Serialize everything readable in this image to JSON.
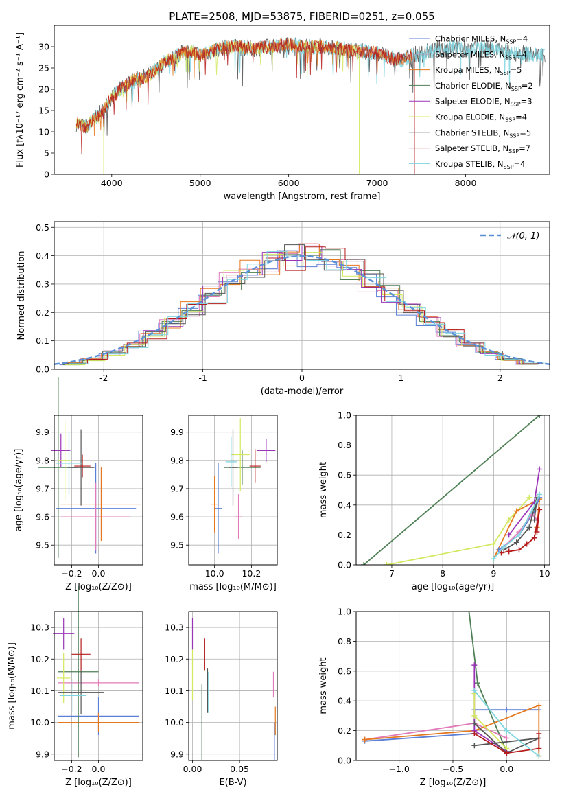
{
  "figure": {
    "title": "PLATE=2508, MJD=53875, FIBERID=0251, z=0.055"
  },
  "palette": {
    "Chabrier MILES": "#5b7fd6",
    "Salpeter MILES": "#e07ab8",
    "Kroupa MILES": "#e5781e",
    "Chabrier ELODIE": "#4f7f55",
    "Salpeter ELODIE": "#9b35b8",
    "Kroupa ELODIE": "#d4e85f",
    "Chabrier STELIB": "#555555",
    "Salpeter STELIB": "#b51b1b",
    "Kroupa STELIB": "#7fd6e0",
    "normal": "#5b8fd6"
  },
  "chart_data": [
    {
      "id": "spectrum",
      "type": "line",
      "title": "PLATE=2508, MJD=53875, FIBERID=0251, z=0.055",
      "xlabel": "wavelength [Angstrom, rest frame]",
      "ylabel": "Flux [fλ10⁻¹⁷ erg cm⁻² s⁻¹ A⁻¹]",
      "xlim": [
        3350,
        8950
      ],
      "ylim": [
        0,
        35
      ],
      "xticks": [
        4000,
        5000,
        6000,
        7000,
        8000
      ],
      "yticks": [
        0,
        5,
        10,
        15,
        20,
        25,
        30
      ],
      "legend": "right",
      "continuum_x": [
        3600,
        3700,
        3800,
        3900,
        4000,
        4100,
        4200,
        4300,
        4400,
        4500,
        4600,
        4700,
        4800,
        4900,
        5000,
        5200,
        5400,
        5600,
        5800,
        6000,
        6200,
        6400,
        6600,
        6800,
        7000,
        7200,
        7300,
        7400,
        7600,
        7800,
        8000,
        8200,
        8400,
        8600,
        8800
      ],
      "continuum_y": [
        12,
        11,
        13,
        15,
        18,
        20,
        21.5,
        22.5,
        23,
        24.5,
        26.5,
        27.5,
        28.5,
        29,
        28,
        29.5,
        30,
        29.5,
        30,
        30.5,
        30,
        30,
        29.5,
        29,
        28.5,
        27,
        27,
        28,
        29,
        30,
        29.5,
        29.5,
        29,
        28.5,
        28
      ],
      "series": [
        {
          "name": "Chabrier MILES, N_SSP=4",
          "label_main": "Chabrier MILES, N",
          "label_sub": "SSP",
          "label_tail": "=4"
        },
        {
          "name": "Salpeter MILES, N_SSP=4",
          "label_main": "Salpeter MILES, N",
          "label_sub": "SSP",
          "label_tail": "=4"
        },
        {
          "name": "Kroupa MILES, N_SSP=5",
          "label_main": "Kroupa MILES, N",
          "label_sub": "SSP",
          "label_tail": "=5"
        },
        {
          "name": "Chabrier ELODIE, N_SSP=2",
          "label_main": "Chabrier ELODIE, N",
          "label_sub": "SSP",
          "label_tail": "=2"
        },
        {
          "name": "Salpeter ELODIE, N_SSP=3",
          "label_main": "Salpeter ELODIE, N",
          "label_sub": "SSP",
          "label_tail": "=3"
        },
        {
          "name": "Kroupa ELODIE, N_SSP=4",
          "label_main": "Kroupa ELODIE, N",
          "label_sub": "SSP",
          "label_tail": "=4"
        },
        {
          "name": "Chabrier STELIB, N_SSP=5",
          "label_main": "Chabrier STELIB, N",
          "label_sub": "SSP",
          "label_tail": "=5"
        },
        {
          "name": "Salpeter STELIB, N_SSP=7",
          "label_main": "Salpeter STELIB, N",
          "label_sub": "SSP",
          "label_tail": "=7"
        },
        {
          "name": "Kroupa STELIB, N_SSP=4",
          "label_main": "Kroupa STELIB, N",
          "label_sub": "SSP",
          "label_tail": "=4"
        }
      ]
    },
    {
      "id": "histogram",
      "type": "bar",
      "xlabel": "(data-model)/error",
      "ylabel": "Normed distribution",
      "xlim": [
        -2.5,
        2.5
      ],
      "ylim": [
        0,
        0.52
      ],
      "xticks": [
        -2,
        -1,
        0,
        1,
        2
      ],
      "yticks": [
        0.0,
        0.1,
        0.2,
        0.3,
        0.4,
        0.5
      ],
      "legend": "top-right",
      "bin_centers": [
        -2.3,
        -2.1,
        -1.9,
        -1.7,
        -1.5,
        -1.3,
        -1.1,
        -0.9,
        -0.7,
        -0.5,
        -0.3,
        -0.1,
        0.1,
        0.3,
        0.5,
        0.7,
        0.9,
        1.1,
        1.3,
        1.5,
        1.7,
        1.9,
        2.1,
        2.3
      ],
      "normal_curve": {
        "label": "𝒩(0, 1)",
        "mean": 0,
        "sd": 1
      }
    },
    {
      "id": "age_vs_Z",
      "type": "scatter",
      "xlabel": "Z [log₁₀(Z/Z⊙)]",
      "ylabel": "age  [log₁₀(age/yr)]",
      "xlim": [
        -0.33,
        0.33
      ],
      "ylim": [
        9.43,
        9.96
      ],
      "xticks": [
        -0.2,
        0.0
      ],
      "xticklabels": [
        "−0.2",
        "0.0"
      ],
      "yticks": [
        9.5,
        9.6,
        9.7,
        9.8,
        9.9
      ],
      "points": [
        {
          "series": "Chabrier MILES",
          "x": -0.02,
          "y": 9.63,
          "xerr": 0.3,
          "yerr": 0.16
        },
        {
          "series": "Salpeter MILES",
          "x": -0.02,
          "y": 9.6,
          "xerr": 0.26,
          "yerr": 0.12
        },
        {
          "series": "Kroupa MILES",
          "x": 0.02,
          "y": 9.645,
          "xerr": 0.3,
          "yerr": 0.13
        },
        {
          "series": "Chabrier ELODIE",
          "x": -0.3,
          "y": 9.775,
          "xerr": 0.15,
          "yerr": 0.32
        },
        {
          "series": "Salpeter ELODIE",
          "x": -0.28,
          "y": 9.835,
          "xerr": 0.07,
          "yerr": 0.06
        },
        {
          "series": "Kroupa ELODIE",
          "x": -0.25,
          "y": 9.8,
          "xerr": 0.05,
          "yerr": 0.14
        },
        {
          "series": "Chabrier STELIB",
          "x": -0.13,
          "y": 9.775,
          "xerr": 0.1,
          "yerr": 0.135
        },
        {
          "series": "Salpeter STELIB",
          "x": -0.12,
          "y": 9.78,
          "xerr": 0.06,
          "yerr": 0.04
        },
        {
          "series": "Kroupa STELIB",
          "x": -0.22,
          "y": 9.79,
          "xerr": 0.1,
          "yerr": 0.11
        }
      ]
    },
    {
      "id": "age_vs_mass",
      "type": "scatter",
      "xlabel": "mass [log₁₀(M/M⊙)]",
      "ylabel": "",
      "xlim": [
        9.86,
        10.34
      ],
      "ylim": [
        9.43,
        9.96
      ],
      "xticks": [
        10.0,
        10.2
      ],
      "xticklabels": [
        "10.0",
        "10.2"
      ],
      "yticks": [
        9.5,
        9.6,
        9.7,
        9.8,
        9.9
      ],
      "points": [
        {
          "series": "Chabrier MILES",
          "x": 10.02,
          "y": 9.63,
          "xerr": 0.02,
          "yerr": 0.16
        },
        {
          "series": "Salpeter MILES",
          "x": 10.13,
          "y": 9.6,
          "xerr": 0.02,
          "yerr": 0.08
        },
        {
          "series": "Kroupa MILES",
          "x": 10.0,
          "y": 9.645,
          "xerr": 0.02,
          "yerr": 0.1
        },
        {
          "series": "Chabrier ELODIE",
          "x": 10.15,
          "y": 9.775,
          "xerr": 0.1,
          "yerr": 0.06
        },
        {
          "series": "Salpeter ELODIE",
          "x": 10.28,
          "y": 9.835,
          "xerr": 0.05,
          "yerr": 0.04
        },
        {
          "series": "Kroupa ELODIE",
          "x": 10.14,
          "y": 9.82,
          "xerr": 0.05,
          "yerr": 0.13
        },
        {
          "series": "Chabrier STELIB",
          "x": 10.1,
          "y": 9.775,
          "xerr": 0.02,
          "yerr": 0.135
        },
        {
          "series": "Salpeter STELIB",
          "x": 10.22,
          "y": 9.78,
          "xerr": 0.03,
          "yerr": 0.06
        },
        {
          "series": "Kroupa STELIB",
          "x": 10.09,
          "y": 9.795,
          "xerr": 0.03,
          "yerr": 0.09
        }
      ]
    },
    {
      "id": "weight_vs_age",
      "type": "line",
      "xlabel": "age  [log₁₀(age/yr)]",
      "ylabel": "mass weight",
      "xlim": [
        6.3,
        10.1
      ],
      "ylim": [
        0,
        1.0
      ],
      "xticks": [
        7,
        8,
        9,
        10
      ],
      "yticks": [
        0.0,
        0.2,
        0.4,
        0.6,
        0.8,
        1.0
      ],
      "series": [
        {
          "series": "Chabrier ELODIE",
          "x": [
            6.45,
            9.9
          ],
          "y": [
            0.0,
            1.0
          ]
        },
        {
          "series": "Kroupa ELODIE",
          "x": [
            6.9,
            9.0,
            9.3,
            9.7
          ],
          "y": [
            0.0,
            0.14,
            0.3,
            0.45
          ]
        },
        {
          "series": "Kroupa MILES",
          "x": [
            9.0,
            9.45,
            9.9,
            9.85
          ],
          "y": [
            0.04,
            0.36,
            0.44,
            0.25
          ]
        },
        {
          "series": "Chabrier MILES",
          "x": [
            9.1,
            9.5,
            9.8,
            9.9
          ],
          "y": [
            0.1,
            0.2,
            0.36,
            0.45
          ]
        },
        {
          "series": "Salpeter MILES",
          "x": [
            9.2,
            9.5,
            9.75,
            9.85
          ],
          "y": [
            0.12,
            0.22,
            0.34,
            0.3
          ]
        },
        {
          "series": "Salpeter ELODIE",
          "x": [
            9.3,
            9.8,
            9.9
          ],
          "y": [
            0.2,
            0.42,
            0.64
          ]
        },
        {
          "series": "Chabrier STELIB",
          "x": [
            9.2,
            9.45,
            9.7,
            9.85,
            9.8
          ],
          "y": [
            0.1,
            0.15,
            0.25,
            0.45,
            0.3
          ]
        },
        {
          "series": "Salpeter STELIB",
          "x": [
            9.15,
            9.3,
            9.5,
            9.65,
            9.8,
            9.9,
            9.85
          ],
          "y": [
            0.08,
            0.09,
            0.1,
            0.14,
            0.18,
            0.37,
            0.22
          ]
        },
        {
          "series": "Kroupa STELIB",
          "x": [
            9.0,
            9.2,
            9.5,
            9.75,
            9.9
          ],
          "y": [
            0.04,
            0.12,
            0.2,
            0.36,
            0.47
          ]
        }
      ]
    },
    {
      "id": "mass_vs_Z",
      "type": "scatter",
      "xlabel": "Z [log₁₀(Z/Z⊙)]",
      "ylabel": "mass [log₁₀(M/M⊙)]",
      "xlim": [
        -0.33,
        0.33
      ],
      "ylim": [
        9.88,
        10.35
      ],
      "xticks": [
        -0.2,
        0.0
      ],
      "xticklabels": [
        "−0.2",
        "0.0"
      ],
      "yticks": [
        9.9,
        10.0,
        10.1,
        10.2,
        10.3
      ],
      "points": [
        {
          "series": "Chabrier MILES",
          "x": 0.0,
          "y": 10.02,
          "xerr": 0.3,
          "yerr": 0.06
        },
        {
          "series": "Salpeter MILES",
          "x": 0.0,
          "y": 10.125,
          "xerr": 0.3,
          "yerr": 0.01
        },
        {
          "series": "Kroupa MILES",
          "x": 0.0,
          "y": 10.0,
          "xerr": 0.3,
          "yerr": 0.03
        },
        {
          "series": "Chabrier ELODIE",
          "x": -0.15,
          "y": 10.16,
          "xerr": 0.15,
          "yerr": 0.27
        },
        {
          "series": "Salpeter ELODIE",
          "x": -0.26,
          "y": 10.28,
          "xerr": 0.08,
          "yerr": 0.05
        },
        {
          "series": "Kroupa ELODIE",
          "x": -0.26,
          "y": 10.14,
          "xerr": 0.05,
          "yerr": 0.08
        },
        {
          "series": "Chabrier STELIB",
          "x": -0.13,
          "y": 10.095,
          "xerr": 0.17,
          "yerr": 0.07
        },
        {
          "series": "Salpeter STELIB",
          "x": -0.13,
          "y": 10.215,
          "xerr": 0.07,
          "yerr": 0.05
        },
        {
          "series": "Kroupa STELIB",
          "x": -0.19,
          "y": 10.085,
          "xerr": 0.1,
          "yerr": 0.05
        }
      ]
    },
    {
      "id": "mass_vs_ebv",
      "type": "scatter",
      "xlabel": "E(B-V)",
      "ylabel": "",
      "xlim": [
        -0.004,
        0.09
      ],
      "ylim": [
        9.88,
        10.35
      ],
      "xticks": [
        0.0,
        0.05
      ],
      "xticklabels": [
        "0.00",
        "0.05"
      ],
      "yticks": [
        9.9,
        10.0,
        10.1,
        10.2,
        10.3
      ],
      "points": [
        {
          "series": "Chabrier MILES",
          "x": 0.087,
          "y": 9.94,
          "xerr": 0,
          "yerr": 0.06
        },
        {
          "series": "Salpeter MILES",
          "x": 0.086,
          "y": 10.12,
          "xerr": 0,
          "yerr": 0.04
        },
        {
          "series": "Kroupa MILES",
          "x": 0.088,
          "y": 10.005,
          "xerr": 0,
          "yerr": 0.045
        },
        {
          "series": "Chabrier ELODIE",
          "x": 0.01,
          "y": 10.0,
          "xerr": 0,
          "yerr": 0.12
        },
        {
          "series": "Salpeter ELODIE",
          "x": 0.0,
          "y": 10.28,
          "xerr": 0,
          "yerr": 0.05
        },
        {
          "series": "Kroupa ELODIE",
          "x": 0.0,
          "y": 10.15,
          "xerr": 0,
          "yerr": 0.08
        },
        {
          "series": "Chabrier STELIB",
          "x": 0.016,
          "y": 10.1,
          "xerr": 0,
          "yerr": 0.07
        },
        {
          "series": "Salpeter STELIB",
          "x": 0.013,
          "y": 10.215,
          "xerr": 0,
          "yerr": 0.05
        },
        {
          "series": "Kroupa STELIB",
          "x": 0.017,
          "y": 10.095,
          "xerr": 0,
          "yerr": 0.065
        }
      ]
    },
    {
      "id": "weight_vs_Z",
      "type": "line",
      "xlabel": "Z [log₁₀(Z/Z⊙)]",
      "ylabel": "mass weight",
      "xlim": [
        -1.4,
        0.4
      ],
      "ylim": [
        0,
        1.0
      ],
      "xticks": [
        -1.0,
        -0.5,
        0.0
      ],
      "xticklabels": [
        "−1.0",
        "−0.5",
        "0.0"
      ],
      "yticks": [
        0.0,
        0.2,
        0.4,
        0.6,
        0.8,
        1.0
      ],
      "series": [
        {
          "series": "Chabrier ELODIE",
          "x": [
            -0.35,
            -0.27,
            0.0
          ],
          "y": [
            1.0,
            0.52,
            0.06
          ]
        },
        {
          "series": "Salpeter MILES",
          "x": [
            -1.32,
            -0.3,
            0.0
          ],
          "y": [
            0.14,
            0.25,
            0.15
          ]
        },
        {
          "series": "Chabrier MILES",
          "x": [
            -1.32,
            -0.3,
            -0.3,
            0.0,
            0.3
          ],
          "y": [
            0.13,
            0.18,
            0.34,
            0.34,
            0.34
          ]
        },
        {
          "series": "Kroupa MILES",
          "x": [
            -1.32,
            -0.3,
            0.3,
            0.3
          ],
          "y": [
            0.14,
            0.2,
            0.37,
            0.03
          ]
        },
        {
          "series": "Salpeter ELODIE",
          "x": [
            -0.3,
            -0.3,
            0.0
          ],
          "y": [
            0.64,
            0.2,
            0.06
          ]
        },
        {
          "series": "Kroupa ELODIE",
          "x": [
            -0.3,
            -0.3,
            0.0
          ],
          "y": [
            0.45,
            0.3,
            0.08
          ]
        },
        {
          "series": "Chabrier STELIB",
          "x": [
            -0.3,
            0.0,
            0.3,
            -0.3
          ],
          "y": [
            0.25,
            0.05,
            0.15,
            0.1
          ]
        },
        {
          "series": "Salpeter STELIB",
          "x": [
            -0.3,
            0.0,
            0.3,
            0.3
          ],
          "y": [
            0.18,
            0.05,
            0.08,
            0.18
          ]
        },
        {
          "series": "Kroupa STELIB",
          "x": [
            -0.3,
            0.0,
            0.3
          ],
          "y": [
            0.47,
            0.2,
            0.03
          ]
        }
      ]
    }
  ]
}
